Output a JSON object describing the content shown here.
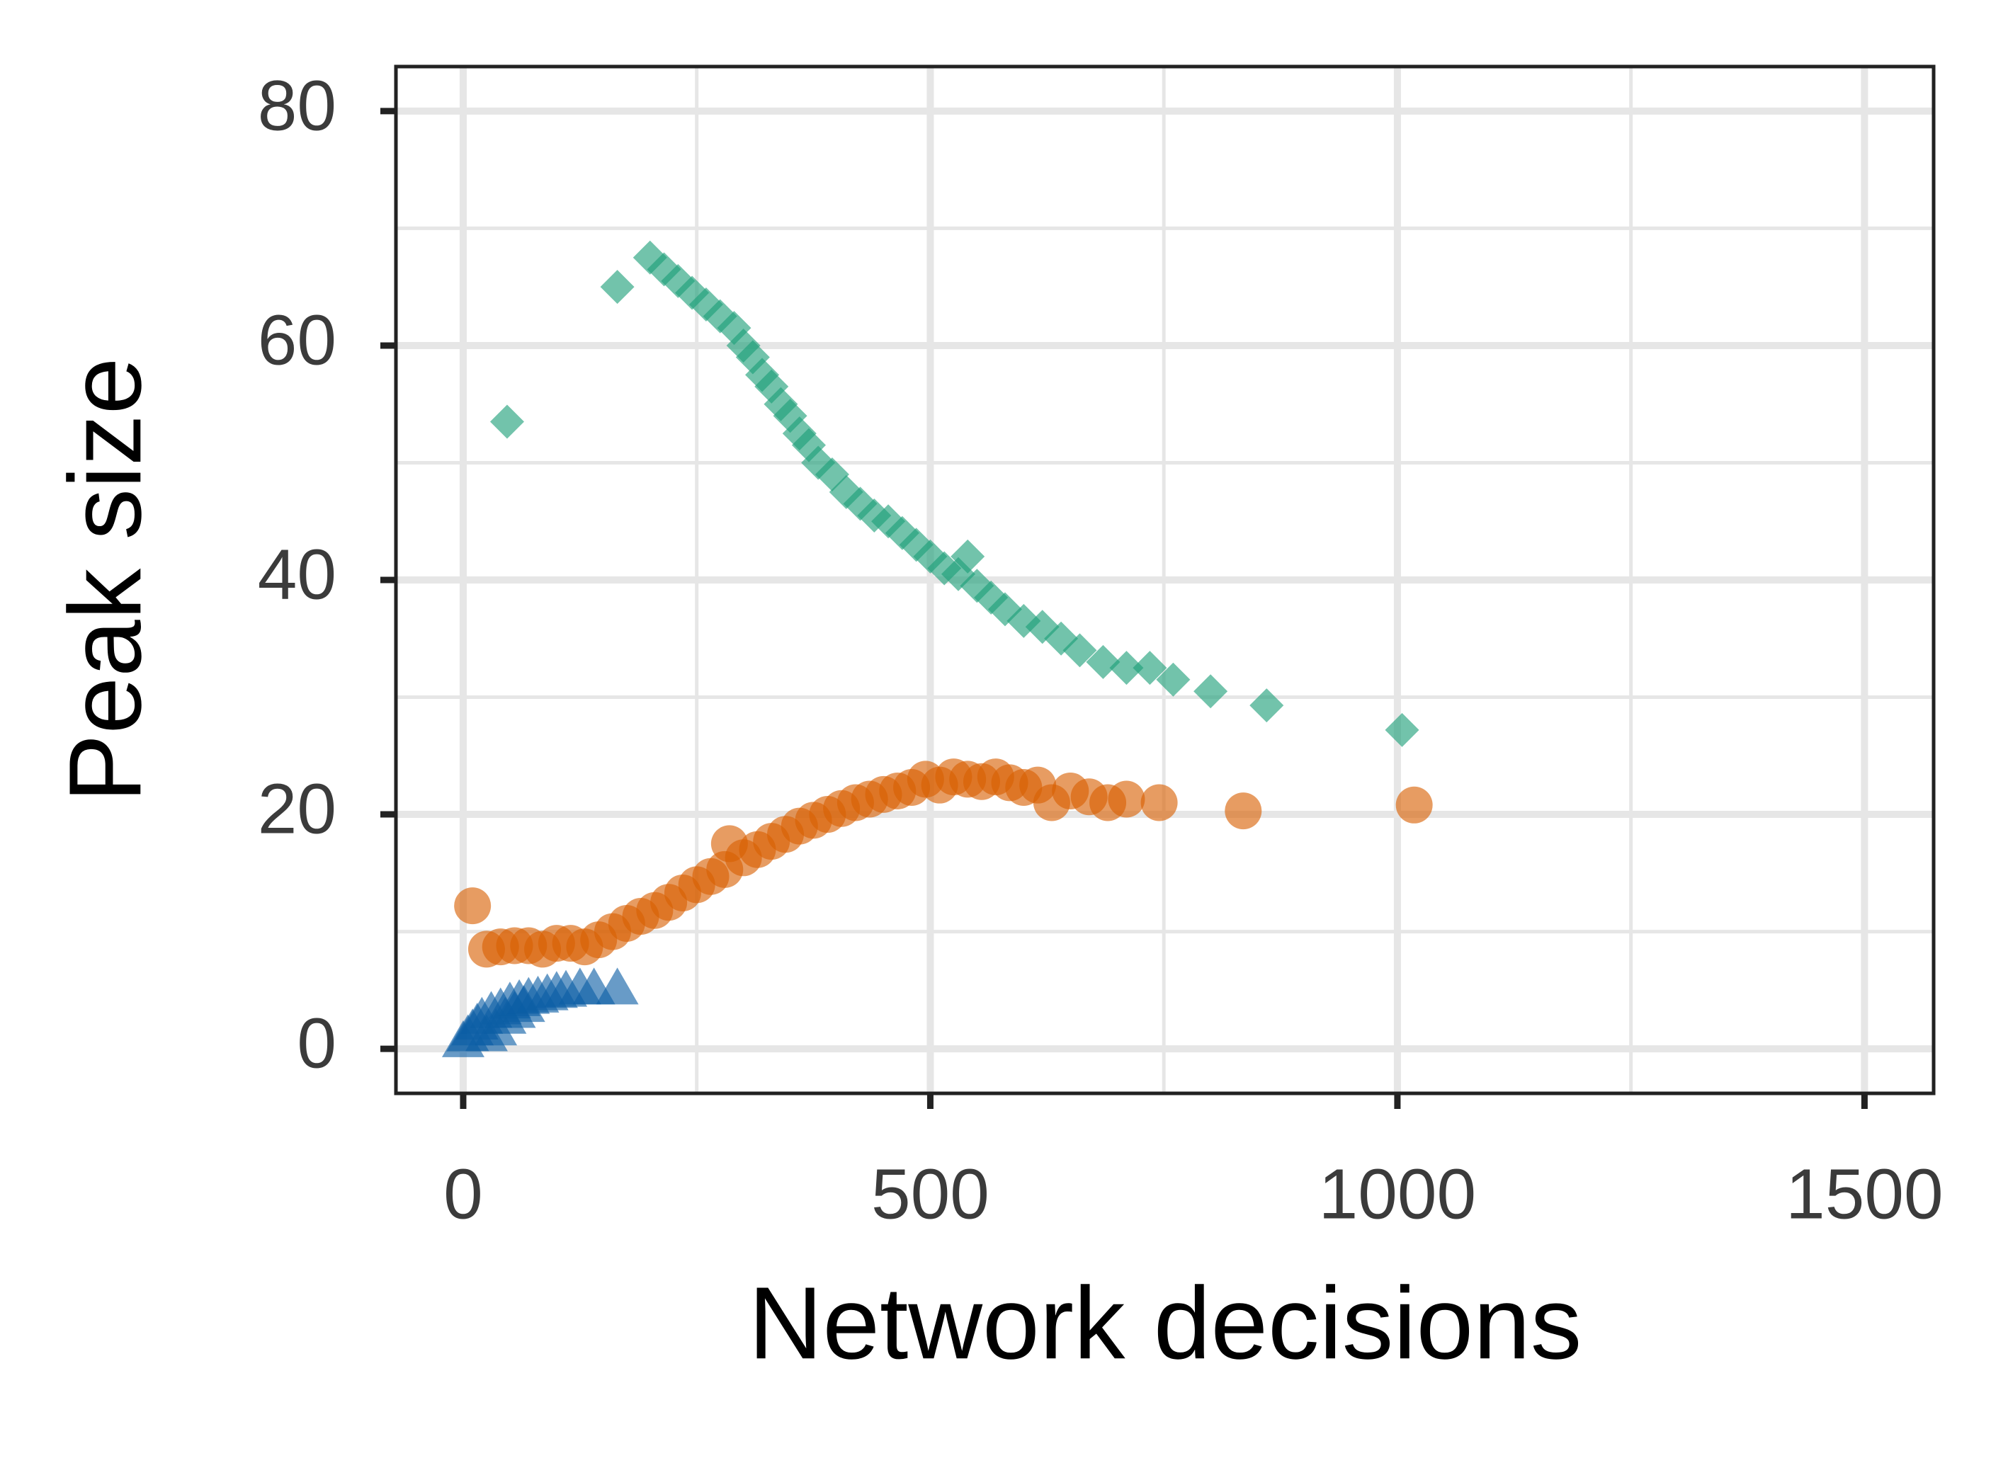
{
  "chart_data": {
    "type": "scatter",
    "xlabel": "Network decisions",
    "ylabel": "Peak size",
    "xlim": [
      -72,
      1574
    ],
    "ylim": [
      -3.8,
      83.8
    ],
    "xticks": [
      0,
      500,
      1000,
      1500
    ],
    "yticks": [
      0,
      20,
      40,
      60,
      80
    ],
    "xminorticks": [
      250,
      750,
      1250
    ],
    "yminorticks": [
      10,
      30,
      50,
      70
    ],
    "grid": true,
    "series": [
      {
        "color": "#1b9e77",
        "marker": "diamond",
        "x": [
          47,
          165,
          200,
          215,
          230,
          245,
          260,
          275,
          290,
          300,
          310,
          320,
          330,
          340,
          350,
          360,
          370,
          380,
          395,
          410,
          425,
          440,
          455,
          470,
          485,
          500,
          515,
          530,
          540,
          550,
          565,
          580,
          600,
          620,
          640,
          660,
          685,
          710,
          735,
          760,
          800,
          860,
          1005
        ],
        "values": [
          53.5,
          65,
          67.5,
          66.5,
          65.5,
          64.5,
          63.5,
          62.5,
          61.5,
          60,
          59,
          57.5,
          56.5,
          55,
          54,
          52.5,
          51.5,
          50,
          49,
          47.5,
          46.5,
          45.5,
          45,
          44,
          43,
          42,
          41,
          40.5,
          42,
          39.5,
          38.5,
          37.5,
          36.5,
          36,
          35,
          34,
          33,
          32.5,
          32.5,
          31.5,
          30.5,
          29.3,
          27.2
        ]
      },
      {
        "color": "#d95f02",
        "marker": "circle",
        "x": [
          10,
          25,
          40,
          55,
          70,
          85,
          100,
          115,
          130,
          145,
          160,
          175,
          190,
          205,
          220,
          235,
          250,
          265,
          280,
          285,
          300,
          315,
          330,
          345,
          360,
          375,
          390,
          405,
          420,
          435,
          450,
          465,
          480,
          495,
          510,
          525,
          540,
          555,
          570,
          585,
          600,
          615,
          630,
          650,
          670,
          690,
          710,
          745,
          835,
          1018
        ],
        "values": [
          12.2,
          8.5,
          8.7,
          8.8,
          8.8,
          8.5,
          9,
          9,
          8.7,
          9.3,
          10,
          10.7,
          11.3,
          11.8,
          12.5,
          13.3,
          14,
          14.7,
          15.3,
          17.5,
          16.3,
          17,
          17.7,
          18.3,
          19,
          19.5,
          20,
          20.5,
          21,
          21.3,
          21.7,
          22,
          22.3,
          23,
          22.5,
          23.2,
          23,
          22.8,
          23.2,
          22.7,
          22.3,
          22.5,
          21,
          22,
          21.5,
          21,
          21.3,
          21,
          20.3,
          20.8
        ]
      },
      {
        "color": "#0c5da5",
        "marker": "triangle",
        "x": [
          0,
          5,
          10,
          15,
          20,
          25,
          30,
          35,
          40,
          45,
          50,
          55,
          60,
          65,
          70,
          80,
          90,
          100,
          110,
          125,
          140,
          165
        ],
        "values": [
          0.5,
          1,
          1.5,
          2,
          2.5,
          1,
          3,
          1.5,
          3.3,
          2.5,
          3.8,
          3,
          4,
          3.5,
          4.2,
          4.3,
          4.5,
          4.7,
          4.8,
          5,
          5,
          5
        ]
      }
    ]
  }
}
